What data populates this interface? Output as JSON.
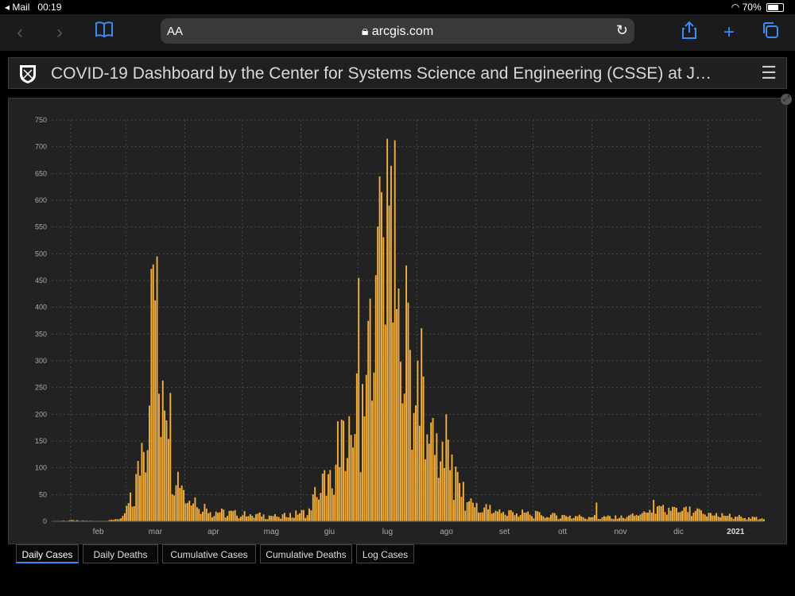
{
  "status": {
    "back_app": "◂ Mail",
    "time": "00:19",
    "battery": "70%",
    "battery_level": 0.7
  },
  "browser": {
    "text_size": "AA",
    "url": "arcgis.com"
  },
  "dashboard": {
    "title": "COVID-19 Dashboard by the Center for Systems Science and Engineering (CSSE) at J…"
  },
  "tabs": [
    {
      "label": "Daily Cases",
      "active": true
    },
    {
      "label": "Daily Deaths",
      "active": false
    },
    {
      "label": "Cumulative Cases",
      "active": false
    },
    {
      "label": "Cumulative Deaths",
      "active": false
    },
    {
      "label": "Log Cases",
      "active": false
    }
  ],
  "colors": {
    "bar": "#f5b03b",
    "grid": "#4a4a4a",
    "axis_text": "#aaaaaa"
  },
  "chart_data": {
    "type": "bar",
    "x_start": "2020-01-22",
    "x_end": "2021-01-30",
    "ylim": [
      0,
      750
    ],
    "yticks": [
      0,
      50,
      100,
      150,
      200,
      250,
      300,
      350,
      400,
      450,
      500,
      550,
      600,
      650,
      700,
      750
    ],
    "xtick_labels": [
      "feb",
      "mar",
      "apr",
      "mag",
      "giu",
      "lug",
      "ago",
      "set",
      "ott",
      "nov",
      "dic",
      "2021"
    ],
    "grid": true,
    "keyframes": [
      [
        "2020-01-22",
        0
      ],
      [
        "2020-01-31",
        2
      ],
      [
        "2020-02-10",
        1
      ],
      [
        "2020-02-20",
        1
      ],
      [
        "2020-02-28",
        8
      ],
      [
        "2020-03-04",
        50
      ],
      [
        "2020-03-08",
        110
      ],
      [
        "2020-03-12",
        280
      ],
      [
        "2020-03-15",
        450
      ],
      [
        "2020-03-17",
        495
      ],
      [
        "2020-03-19",
        360
      ],
      [
        "2020-03-21",
        300
      ],
      [
        "2020-03-23",
        250
      ],
      [
        "2020-03-25",
        150
      ],
      [
        "2020-03-28",
        90
      ],
      [
        "2020-04-02",
        60
      ],
      [
        "2020-04-08",
        35
      ],
      [
        "2020-04-15",
        20
      ],
      [
        "2020-05-01",
        15
      ],
      [
        "2020-05-20",
        10
      ],
      [
        "2020-06-05",
        20
      ],
      [
        "2020-06-10",
        75
      ],
      [
        "2020-06-18",
        80
      ],
      [
        "2020-06-21",
        180
      ],
      [
        "2020-06-26",
        150
      ],
      [
        "2020-07-05",
        300
      ],
      [
        "2020-07-12",
        520
      ],
      [
        "2020-07-16",
        600
      ],
      [
        "2020-07-19",
        450
      ],
      [
        "2020-07-24",
        400
      ],
      [
        "2020-08-01",
        300
      ],
      [
        "2020-08-08",
        200
      ],
      [
        "2020-08-15",
        130
      ],
      [
        "2020-08-25",
        55
      ],
      [
        "2020-09-01",
        30
      ],
      [
        "2020-09-15",
        20
      ],
      [
        "2020-10-10",
        12
      ],
      [
        "2020-11-15",
        8
      ],
      [
        "2020-12-01",
        20
      ],
      [
        "2020-12-10",
        25
      ],
      [
        "2020-12-20",
        22
      ],
      [
        "2021-01-10",
        12
      ],
      [
        "2021-01-30",
        5
      ]
    ],
    "spikes": [
      [
        "2020-03-15",
        480
      ],
      [
        "2020-03-17",
        495
      ],
      [
        "2020-07-16",
        715
      ],
      [
        "2020-07-20",
        712
      ],
      [
        "2020-07-17",
        590
      ],
      [
        "2020-07-13",
        615
      ],
      [
        "2020-07-10",
        460
      ],
      [
        "2020-07-22",
        435
      ],
      [
        "2020-07-01",
        455
      ],
      [
        "2020-06-22",
        190
      ],
      [
        "2020-08-16",
        200
      ],
      [
        "2020-08-19",
        125
      ],
      [
        "2020-11-03",
        35
      ],
      [
        "2020-12-03",
        40
      ]
    ]
  }
}
